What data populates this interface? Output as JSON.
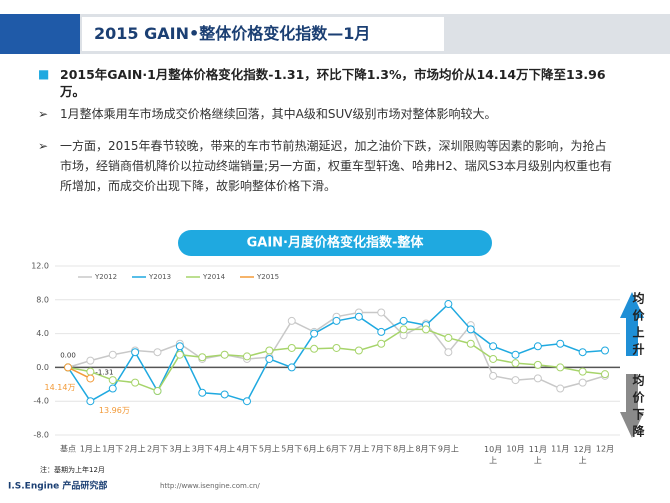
{
  "header": {
    "title": "2015 GAIN•整体价格变化指数—1月"
  },
  "bullets": [
    "2015年GAIN·1月整体价格变化指数-1.31，环比下降1.3%，市场均价从14.14万下降至13.96万。",
    "1月整体乘用车市场成交价格继续回落，其中A级和SUV级别市场对整体影响较大。",
    "一方面，2015年春节较晚，带来的车市节前热潮延迟，加之油价下跌，深圳限购等因素的影响，为抢占市场，经销商借机降价以拉动终端销量;另一方面，权重车型轩逸、哈弗H2、瑞风S3本月级别内权重也有所增加，而成交价出现下降，故影响整体价格下滑。"
  ],
  "chart_data": {
    "type": "line",
    "title": "GAIN·月度价格变化指数-整体",
    "categories": [
      "基点",
      "1月上",
      "1月下",
      "2月上",
      "2月下",
      "3月上",
      "3月下",
      "4月上",
      "4月下",
      "5月上",
      "5月下",
      "6月上",
      "6月下",
      "7月上",
      "7月下",
      "8月上",
      "8月下",
      "9月上",
      null,
      "10月上",
      "10月",
      "11月上",
      "11月",
      "12月上",
      "12月"
    ],
    "series": [
      {
        "name": "Y2012",
        "color": "#c8c8c8",
        "values": [
          0,
          0.8,
          1.5,
          2.0,
          1.8,
          2.8,
          1.0,
          1.5,
          1.0,
          1.2,
          5.5,
          4.2,
          6.0,
          6.5,
          6.5,
          3.8,
          5.2,
          1.8,
          5.0,
          -1.0,
          -1.5,
          -1.3,
          -2.5,
          -1.8,
          -1.0
        ]
      },
      {
        "name": "Y2013",
        "color": "#1fa9e0",
        "values": [
          0,
          -4.0,
          -2.5,
          1.8,
          -2.8,
          2.5,
          -3.0,
          -3.2,
          -4.0,
          1.0,
          0,
          4.0,
          5.5,
          6.0,
          4.2,
          5.5,
          5.0,
          7.5,
          4.5,
          2.5,
          1.5,
          2.5,
          2.8,
          1.8,
          2.0
        ]
      },
      {
        "name": "Y2014",
        "color": "#a6d46a",
        "values": [
          0,
          -0.5,
          -1.5,
          -1.8,
          -2.8,
          1.5,
          1.2,
          1.5,
          1.3,
          2.0,
          2.3,
          2.2,
          2.3,
          2.0,
          2.8,
          4.5,
          4.5,
          3.5,
          2.8,
          1.0,
          0.5,
          0.3,
          0,
          -0.5,
          -0.8
        ]
      },
      {
        "name": "Y2015",
        "color": "#f29a38",
        "values": [
          0,
          -1.31,
          null,
          null,
          null,
          null,
          null,
          null,
          null,
          null,
          null,
          null,
          null,
          null,
          null,
          null,
          null,
          null,
          null,
          null,
          null,
          null,
          null,
          null,
          null
        ],
        "value_labels": [
          "0.00",
          "-1.31",
          null,
          null,
          null,
          null,
          null,
          null,
          null,
          null,
          null,
          null,
          null,
          null,
          null,
          null,
          null,
          null,
          null,
          null,
          null,
          null,
          null,
          null,
          null
        ]
      }
    ],
    "ylim": [
      -8,
      12
    ],
    "yticks": [
      {
        "value": -8,
        "label": "-8.0"
      },
      {
        "value": -4,
        "label": "-4.0"
      },
      {
        "value": 0,
        "label": "0.0"
      },
      {
        "value": 4,
        "label": "4.0"
      },
      {
        "value": 8,
        "label": "8.0"
      },
      {
        "value": 12,
        "label": "12.0"
      }
    ],
    "grid": true,
    "annotations": [
      "14.14万",
      "13.96万"
    ],
    "up_label": "均价上升",
    "down_label": "均价下降",
    "note": "注：基期为上年12月"
  },
  "footer": {
    "org": "I.S.Engine 产品研究部",
    "url": "http://www.isengine.com.cn/"
  }
}
